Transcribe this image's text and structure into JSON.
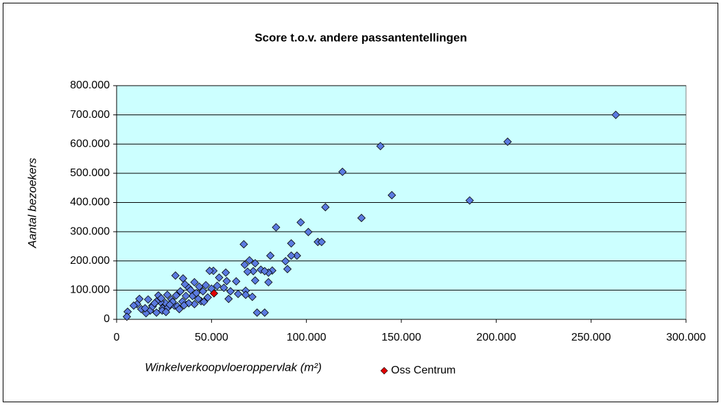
{
  "chart_data": {
    "type": "scatter",
    "title": "Score t.o.v. andere passantentellingen",
    "xlabel": "Winkelverkoopvloeroppervlak (m²)",
    "ylabel": "Aantal bezoekers",
    "xlim": [
      0,
      300000
    ],
    "xticks": [
      0,
      {
        "value": 50000,
        "label": "50.000"
      },
      {
        "value": 100000,
        "label": "100.000"
      },
      {
        "value": 150000,
        "label": "150.000"
      },
      {
        "value": 200000,
        "label": "200.000"
      },
      {
        "value": 250000,
        "label": "250.000"
      },
      {
        "value": 300000,
        "label": "300.000"
      }
    ],
    "ylim": [
      0,
      800000
    ],
    "yticks": [
      0,
      {
        "value": 100000,
        "label": "100.000"
      },
      {
        "value": 200000,
        "label": "200.000"
      },
      {
        "value": 300000,
        "label": "300.000"
      },
      {
        "value": 400000,
        "label": "400.000"
      },
      {
        "value": 500000,
        "label": "500.000"
      },
      {
        "value": 600000,
        "label": "600.000"
      },
      {
        "value": 700000,
        "label": "700.000"
      },
      {
        "value": 800000,
        "label": "800.000"
      }
    ],
    "grid": true,
    "plot_background": "#ccffff",
    "legend": "bottom",
    "series": [
      {
        "color": "#5b7be0",
        "x": [
          263000,
          206000,
          139000,
          119000,
          145000,
          186000,
          129000,
          110000,
          97000,
          101000,
          84000,
          106000,
          108000,
          92000,
          67000,
          95000,
          92000,
          90000,
          89000,
          81000,
          82000,
          80000,
          80000,
          73000,
          70000,
          67500,
          76000,
          78000,
          72000,
          69000,
          73000,
          74000,
          78000,
          71500,
          68000,
          68000,
          63000,
          64000,
          58000,
          57500,
          59000,
          60000,
          56500,
          53000,
          54000,
          51000,
          49000,
          47000,
          45500,
          43500,
          41000,
          38000,
          40000,
          36500,
          34700,
          33600,
          31400,
          30400,
          28900,
          26700,
          25700,
          24200,
          23100,
          21000,
          21000,
          18800,
          17700,
          16600,
          15500,
          13000,
          10800,
          9000,
          5800,
          5400,
          12000,
          22000,
          31000,
          35000,
          27000,
          32000,
          41000,
          44500,
          48000,
          43000,
          38000,
          33000,
          29500,
          24000,
          19000,
          15000,
          36000,
          39000,
          42000,
          46000,
          50000,
          26000,
          28000,
          23500,
          20000,
          35500
        ],
        "values": [
          700000,
          608000,
          593000,
          505000,
          425000,
          407000,
          347000,
          384000,
          332000,
          299000,
          315000,
          265000,
          265000,
          260000,
          257000,
          218000,
          218000,
          172000,
          199000,
          218000,
          167000,
          160000,
          127000,
          192000,
          202000,
          187000,
          170000,
          165000,
          165000,
          163000,
          133000,
          23000,
          23000,
          77000,
          98000,
          84000,
          130000,
          87000,
          131000,
          160000,
          70000,
          96000,
          108000,
          115000,
          143000,
          166000,
          166000,
          117000,
          96000,
          112000,
          127000,
          108000,
          80000,
          80000,
          61000,
          96000,
          82000,
          47000,
          68000,
          84000,
          56000,
          38000,
          59000,
          61000,
          23000,
          47000,
          30000,
          68000,
          21000,
          35000,
          52000,
          47000,
          26000,
          9000,
          70000,
          82000,
          150000,
          140000,
          40000,
          45000,
          52000,
          62000,
          75000,
          70000,
          55000,
          35000,
          60000,
          30000,
          44000,
          38000,
          120000,
          100000,
          90000,
          60000,
          105000,
          25000,
          50000,
          72000,
          55000,
          48000
        ]
      },
      {
        "name": "Oss Centrum",
        "color": "#e00000",
        "x": [
          51300
        ],
        "values": [
          89000
        ]
      }
    ]
  }
}
